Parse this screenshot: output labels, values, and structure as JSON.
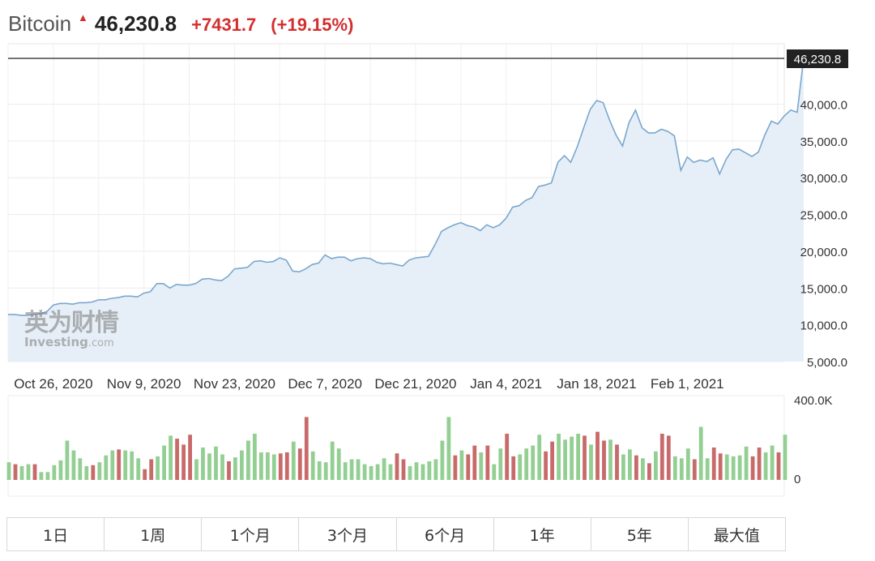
{
  "header": {
    "instrument": "Bitcoin",
    "price": "46,230.8",
    "change": "+7431.7",
    "change_pct": "(+19.15%)"
  },
  "watermark": {
    "cn": "英为财情",
    "en": "Investing",
    "domain": ".com"
  },
  "colors": {
    "line": "#7aa7cf",
    "area": "#e6eff7",
    "up_volume": "#93cf93",
    "down_volume": "#c96a6a",
    "last_label_bg": "#222222"
  },
  "chart_data": {
    "type": "area",
    "last_price_label": "46,230.8",
    "y_ticks": [
      "40,000.0",
      "35,000.0",
      "30,000.0",
      "25,000.0",
      "20,000.0",
      "15,000.0",
      "10,000.0",
      "5,000.0"
    ],
    "y_tick_values": [
      40000,
      35000,
      30000,
      25000,
      20000,
      15000,
      10000,
      5000
    ],
    "ylim": [
      5000,
      46230.8
    ],
    "x_ticks": [
      "Oct 26, 2020",
      "Nov 9, 2020",
      "Nov 23, 2020",
      "Dec 7, 2020",
      "Dec 21, 2020",
      "Jan 4, 2021",
      "Jan 18, 2021",
      "Feb 1, 2021"
    ],
    "x_tick_index": [
      7,
      21,
      35,
      49,
      63,
      77,
      91,
      105
    ],
    "x_range": [
      0,
      120
    ],
    "grid": true,
    "price": [
      11400,
      11400,
      11300,
      11300,
      11400,
      11500,
      11800,
      12700,
      12900,
      12900,
      12800,
      13000,
      13000,
      13100,
      13400,
      13400,
      13600,
      13700,
      13900,
      13900,
      13800,
      14300,
      14500,
      15600,
      15600,
      15000,
      15500,
      15400,
      15400,
      15600,
      16200,
      16300,
      16100,
      16000,
      16600,
      17600,
      17700,
      17800,
      18600,
      18700,
      18500,
      18600,
      19100,
      18800,
      17300,
      17200,
      17600,
      18200,
      18400,
      19500,
      19000,
      19200,
      19200,
      18700,
      19000,
      19100,
      19000,
      18500,
      18300,
      18400,
      18200,
      18000,
      18800,
      19100,
      19200,
      19300,
      20900,
      22700,
      23200,
      23600,
      23900,
      23500,
      23300,
      22800,
      23600,
      23200,
      23600,
      24500,
      26000,
      26200,
      26900,
      27300,
      28800,
      29000,
      29300,
      32100,
      33000,
      32100,
      34200,
      36800,
      39300,
      40500,
      40200,
      37800,
      35800,
      34300,
      37500,
      39200,
      36800,
      36100,
      36100,
      36600,
      36300,
      35700,
      31000,
      32800,
      32100,
      32400,
      32200,
      32700,
      30500,
      32500,
      33800,
      33900,
      33400,
      32900,
      33500,
      35800,
      37700,
      37300,
      38400,
      39200,
      38900,
      46230.8
    ],
    "volume_ylim": [
      0,
      400
    ],
    "volume_ticks": [
      "400.0K",
      "0"
    ],
    "volume": [
      [
        90,
        1
      ],
      [
        80,
        0
      ],
      [
        70,
        1
      ],
      [
        80,
        1
      ],
      [
        80,
        0
      ],
      [
        40,
        1
      ],
      [
        40,
        1
      ],
      [
        75,
        1
      ],
      [
        100,
        1
      ],
      [
        200,
        1
      ],
      [
        150,
        1
      ],
      [
        110,
        1
      ],
      [
        70,
        1
      ],
      [
        75,
        0
      ],
      [
        90,
        1
      ],
      [
        125,
        1
      ],
      [
        150,
        1
      ],
      [
        155,
        0
      ],
      [
        150,
        1
      ],
      [
        145,
        1
      ],
      [
        110,
        1
      ],
      [
        55,
        0
      ],
      [
        105,
        0
      ],
      [
        120,
        1
      ],
      [
        175,
        1
      ],
      [
        225,
        1
      ],
      [
        210,
        0
      ],
      [
        180,
        0
      ],
      [
        230,
        0
      ],
      [
        105,
        1
      ],
      [
        165,
        1
      ],
      [
        135,
        1
      ],
      [
        170,
        1
      ],
      [
        130,
        1
      ],
      [
        95,
        0
      ],
      [
        115,
        1
      ],
      [
        150,
        1
      ],
      [
        200,
        1
      ],
      [
        235,
        1
      ],
      [
        140,
        1
      ],
      [
        140,
        1
      ],
      [
        130,
        1
      ],
      [
        135,
        0
      ],
      [
        140,
        0
      ],
      [
        195,
        1
      ],
      [
        160,
        0
      ],
      [
        320,
        0
      ],
      [
        145,
        1
      ],
      [
        95,
        1
      ],
      [
        90,
        1
      ],
      [
        195,
        1
      ],
      [
        160,
        1
      ],
      [
        90,
        1
      ],
      [
        105,
        1
      ],
      [
        105,
        1
      ],
      [
        80,
        1
      ],
      [
        70,
        1
      ],
      [
        80,
        1
      ],
      [
        110,
        1
      ],
      [
        80,
        1
      ],
      [
        135,
        0
      ],
      [
        105,
        0
      ],
      [
        70,
        1
      ],
      [
        90,
        1
      ],
      [
        80,
        1
      ],
      [
        95,
        1
      ],
      [
        105,
        1
      ],
      [
        200,
        1
      ],
      [
        320,
        1
      ],
      [
        125,
        0
      ],
      [
        150,
        1
      ],
      [
        130,
        0
      ],
      [
        175,
        0
      ],
      [
        140,
        1
      ],
      [
        175,
        0
      ],
      [
        80,
        1
      ],
      [
        160,
        1
      ],
      [
        235,
        0
      ],
      [
        120,
        0
      ],
      [
        130,
        1
      ],
      [
        160,
        1
      ],
      [
        175,
        1
      ],
      [
        230,
        1
      ],
      [
        145,
        0
      ],
      [
        195,
        0
      ],
      [
        235,
        1
      ],
      [
        205,
        1
      ],
      [
        220,
        1
      ],
      [
        235,
        1
      ],
      [
        225,
        0
      ],
      [
        180,
        1
      ],
      [
        245,
        0
      ],
      [
        200,
        0
      ],
      [
        205,
        1
      ],
      [
        180,
        0
      ],
      [
        130,
        1
      ],
      [
        155,
        1
      ],
      [
        125,
        0
      ],
      [
        110,
        1
      ],
      [
        85,
        0
      ],
      [
        145,
        1
      ],
      [
        235,
        0
      ],
      [
        225,
        0
      ],
      [
        120,
        1
      ],
      [
        110,
        1
      ],
      [
        160,
        1
      ],
      [
        105,
        0
      ],
      [
        270,
        1
      ],
      [
        110,
        1
      ],
      [
        165,
        0
      ],
      [
        135,
        0
      ],
      [
        130,
        1
      ],
      [
        120,
        1
      ],
      [
        125,
        1
      ],
      [
        170,
        1
      ],
      [
        120,
        0
      ],
      [
        165,
        0
      ],
      [
        140,
        1
      ],
      [
        175,
        1
      ],
      [
        140,
        0
      ],
      [
        230,
        1
      ]
    ]
  },
  "ranges": [
    "1日",
    "1周",
    "1个月",
    "3个月",
    "6个月",
    "1年",
    "5年",
    "最大值"
  ]
}
